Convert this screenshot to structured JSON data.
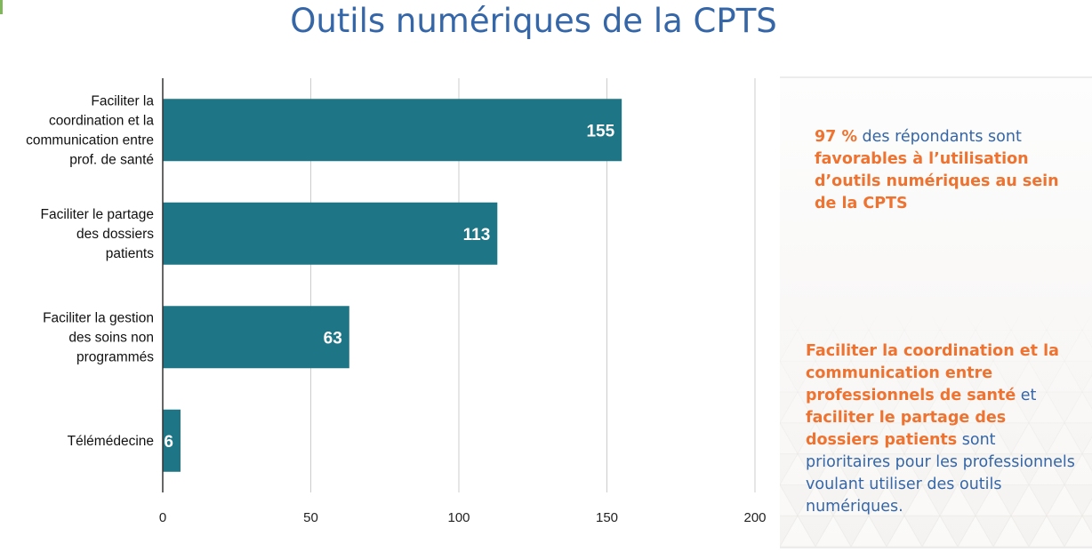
{
  "title": "Outils numériques de la CPTS",
  "colors": {
    "bar": "#1e7585",
    "accent": "#ee7330",
    "text_blue": "#3566a8",
    "title": "#3566a8"
  },
  "chart_data": {
    "type": "bar",
    "orientation": "horizontal",
    "categories": [
      [
        "Faciliter la",
        "coordination et la",
        "communication entre",
        "prof. de santé"
      ],
      [
        "Faciliter le partage",
        "des dossiers",
        "patients"
      ],
      [
        "Faciliter la gestion",
        "des soins non",
        "programmés"
      ],
      [
        "Télémédecine"
      ]
    ],
    "values": [
      155,
      113,
      63,
      6
    ],
    "xlim": [
      0,
      200
    ],
    "xticks": [
      0,
      50,
      100,
      150,
      200
    ],
    "grid": true,
    "data_labels": true
  },
  "notes": {
    "n1_pct": "97 %",
    "n1_text": " des répondants sont ",
    "n1_bold": "favorables à l’utilisation d’outils numériques au sein de la CPTS",
    "n2_bold1": "Faciliter la coordination et la communication entre professionnels de santé",
    "n2_and": " et ",
    "n2_bold2": "faciliter le partage des dossiers patients",
    "n2_text": " sont prioritaires pour les professionnels voulant utiliser des outils numériques."
  }
}
